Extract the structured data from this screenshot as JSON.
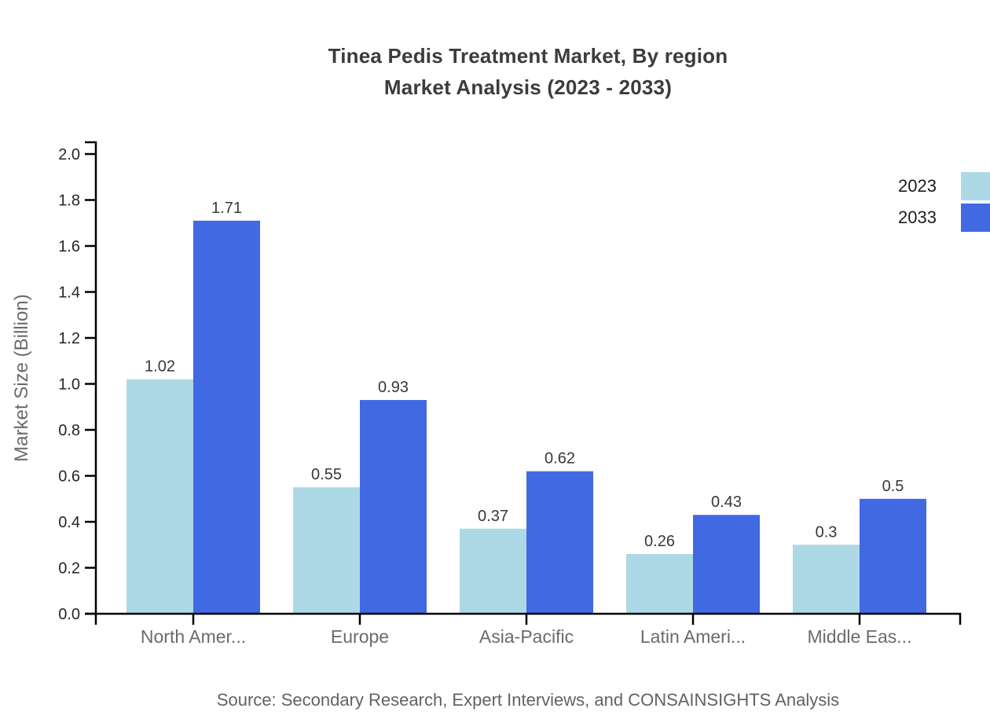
{
  "page": {
    "title_line1": "Tinea Pedis Treatment Market, By region",
    "title_line2": "Market Analysis (2023 - 2033)",
    "source": "Source: Secondary Research, Expert Interviews, and CONSAINSIGHTS Analysis"
  },
  "chart_data": {
    "type": "bar",
    "title": "Tinea Pedis Treatment Market, By region Market Analysis (2023 - 2033)",
    "categories": [
      "North Amer...",
      "Europe",
      "Asia-Pacific",
      "Latin Ameri...",
      "Middle Eas..."
    ],
    "series": [
      {
        "name": "2023",
        "color": "#ADD8E6",
        "values": [
          1.02,
          0.55,
          0.37,
          0.26,
          0.3
        ]
      },
      {
        "name": "2033",
        "color": "#4169E1",
        "values": [
          1.71,
          0.93,
          0.62,
          0.43,
          0.5
        ]
      }
    ],
    "xlabel": "",
    "ylabel": "Market Size (Billion)",
    "ylim": [
      0,
      2.052
    ],
    "yticks": [
      "0.0",
      "0.2",
      "0.4",
      "0.6",
      "0.8",
      "1.0",
      "1.2",
      "1.4",
      "1.6",
      "1.8",
      "2.0"
    ],
    "grid": false,
    "legend_position": "top-right",
    "bar_value_labels": true,
    "axis_color": "#000000"
  }
}
